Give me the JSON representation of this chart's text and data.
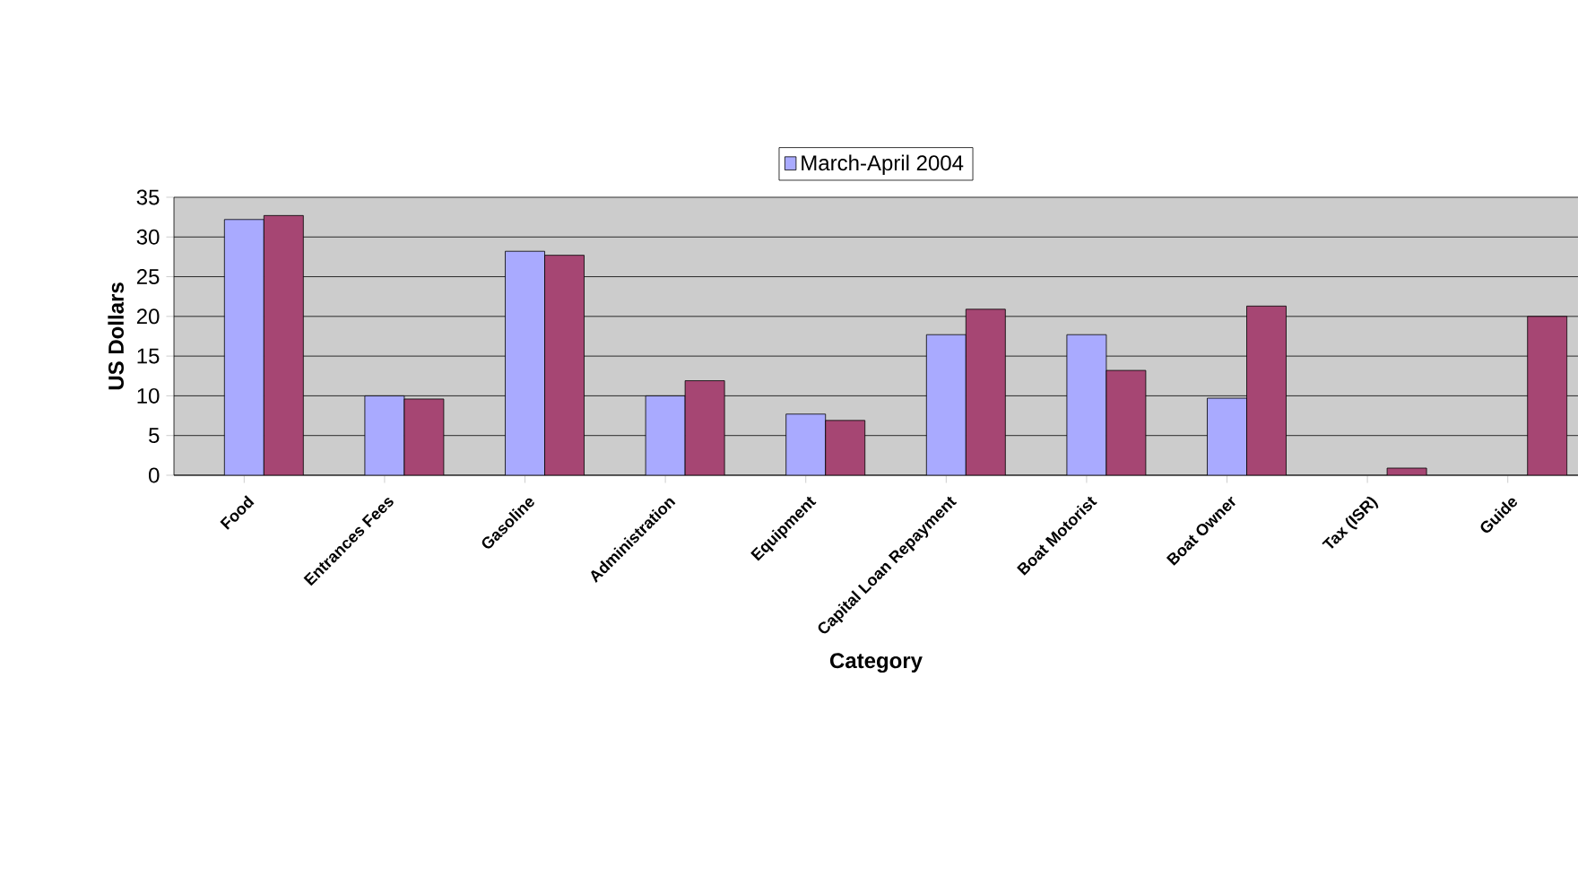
{
  "chart_data": {
    "type": "bar",
    "xlabel": "Category",
    "ylabel": "US Dollars",
    "categories": [
      "Food",
      "Entrances Fees",
      "Gasoline",
      "Administration",
      "Equipment",
      "Capital Loan Repayment",
      "Boat Motorist",
      "Boat Owner",
      "Tax (ISR)",
      "Guide"
    ],
    "series": [
      {
        "name": "March-April 2004",
        "color": "#a9aaff",
        "values": [
          32.2,
          10,
          28.2,
          10,
          7.7,
          17.7,
          17.7,
          9.7,
          null,
          null
        ]
      },
      {
        "color": "#a64673",
        "values": [
          32.7,
          9.6,
          27.7,
          11.9,
          6.9,
          20.9,
          13.2,
          21.3,
          0.9,
          20
        ]
      }
    ],
    "ylim": [
      0,
      35
    ],
    "yticks": [
      0,
      5,
      10,
      15,
      20,
      25,
      30,
      35
    ],
    "grid": "y",
    "legend": "top"
  }
}
